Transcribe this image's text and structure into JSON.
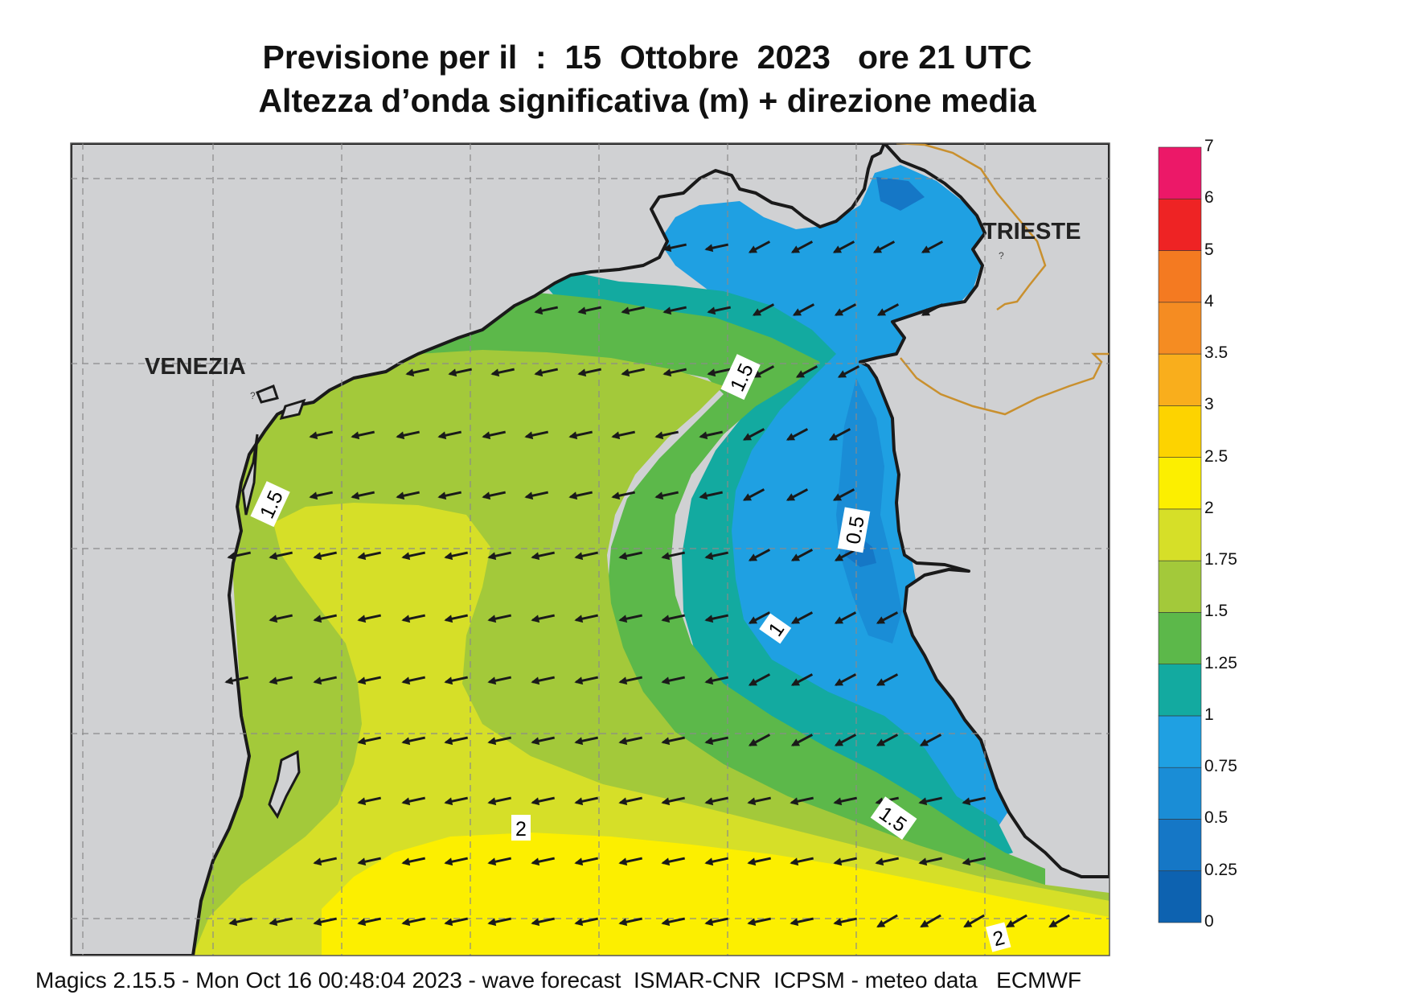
{
  "title": {
    "line1": "Previsione per il  :  15  Ottobre  2023   ore 21 UTC",
    "line2": "Altezza d’onda significativa (m) + direzione media"
  },
  "places": [
    {
      "name": "VENEZIA"
    },
    {
      "name": "TRIESTE"
    }
  ],
  "contour_labels": [
    "1.5",
    "1.5",
    "0.5",
    "1",
    "1.5",
    "2",
    "2"
  ],
  "colorbar": {
    "ticks": [
      "0",
      "0.25",
      "0.5",
      "0.75",
      "1",
      "1.25",
      "1.5",
      "1.75",
      "2",
      "2.5",
      "3",
      "3.5",
      "4",
      "5",
      "6",
      "7"
    ],
    "colors": [
      "#0d62b0",
      "#1577c6",
      "#1a8dd6",
      "#1fa0e2",
      "#13aaa0",
      "#5cb84a",
      "#a3c93a",
      "#d6df28",
      "#fcef00",
      "#fdd300",
      "#f9ae1c",
      "#f58c22",
      "#f47a21",
      "#ee2324",
      "#ec1868"
    ]
  },
  "legend_colors": {
    "land": "#d0d1d3",
    "coast": "#1a1a1a",
    "border": "#c9902e",
    "grid": "#8a8a8a",
    "arrow": "#1a1a1a"
  },
  "footer": "Magics 2.15.5 - Mon Oct 16 00:48:04 2023 - wave forecast  ISMAR-CNR  ICPSM - meteo data   ECMWF"
}
